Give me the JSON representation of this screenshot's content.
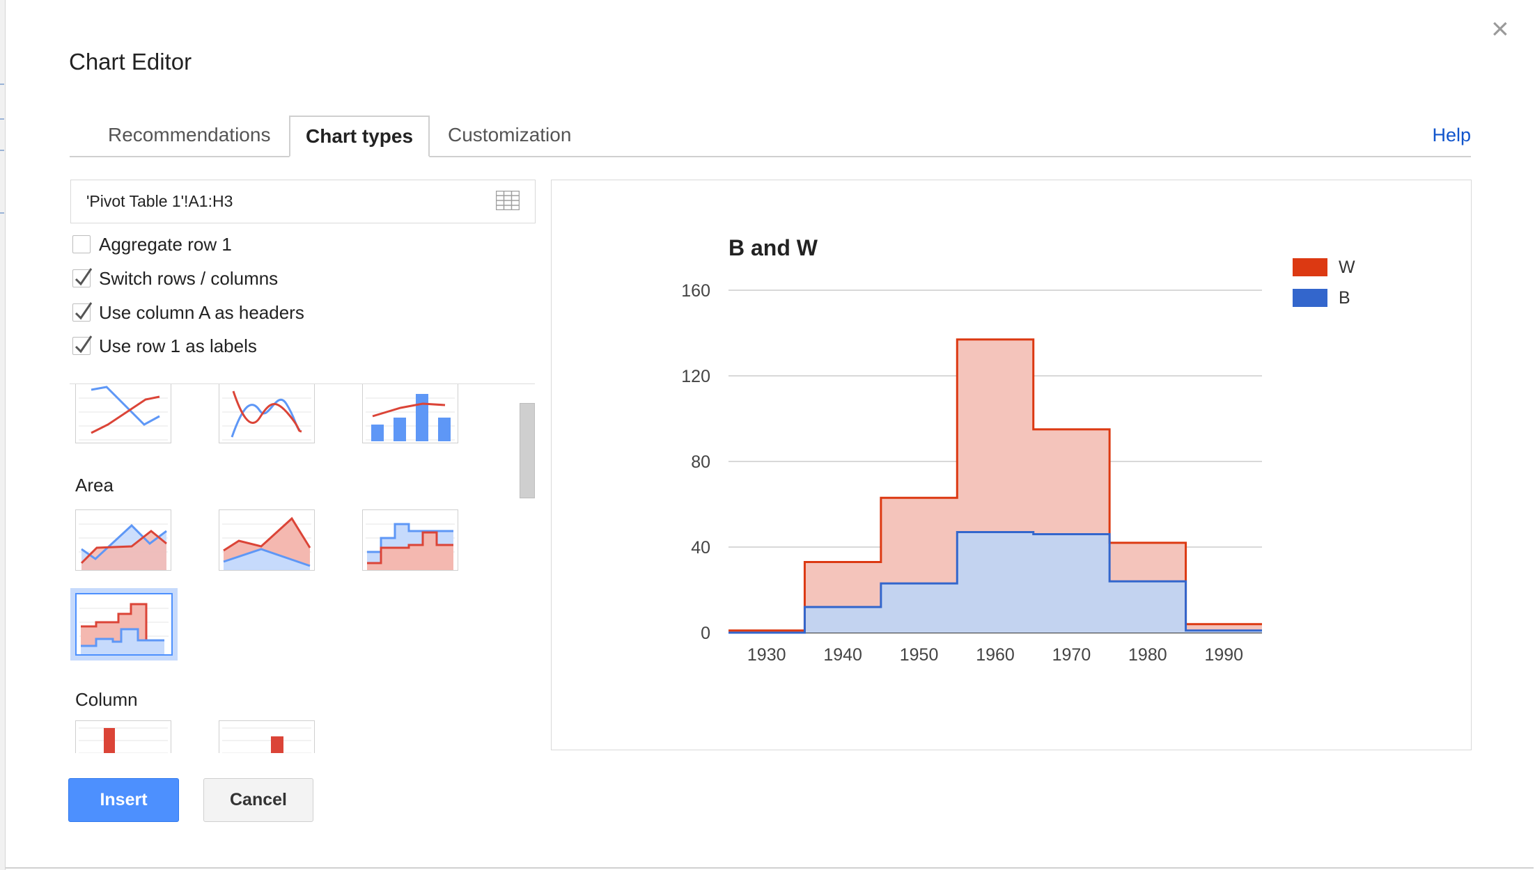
{
  "dialog": {
    "title": "Chart Editor",
    "close_glyph": "×"
  },
  "tabs": [
    {
      "label": "Recommendations",
      "active": false
    },
    {
      "label": "Chart types",
      "active": true
    },
    {
      "label": "Customization",
      "active": false
    }
  ],
  "help_label": "Help",
  "data_range": {
    "value": "'Pivot Table 1'!A1:H3",
    "icon": "grid-icon"
  },
  "options": [
    {
      "label": "Aggregate row 1",
      "checked": false
    },
    {
      "label": "Switch rows / columns",
      "checked": true
    },
    {
      "label": "Use column A as headers",
      "checked": true
    },
    {
      "label": "Use row 1 as labels",
      "checked": true
    }
  ],
  "chart_types": {
    "sections": [
      "Area",
      "Column"
    ],
    "selected": "stepped-area"
  },
  "buttons": {
    "insert": "Insert",
    "cancel": "Cancel"
  },
  "colors": {
    "W": "#dc3912",
    "B": "#3366cc",
    "accent": "#4d90fe",
    "link": "#1155cc"
  },
  "chart_data": {
    "type": "area",
    "style": "stepped",
    "title": "B and W",
    "categories": [
      "1930",
      "1940",
      "1950",
      "1960",
      "1970",
      "1980",
      "1990"
    ],
    "x": [
      1930,
      1940,
      1950,
      1960,
      1970,
      1980,
      1990
    ],
    "series": [
      {
        "name": "W",
        "values": [
          1,
          33,
          63,
          137,
          95,
          42,
          4
        ]
      },
      {
        "name": "B",
        "values": [
          0,
          12,
          23,
          47,
          46,
          24,
          1
        ]
      }
    ],
    "yticks": [
      "0",
      "40",
      "80",
      "120",
      "160"
    ],
    "ylim": [
      0,
      160
    ],
    "grid": true,
    "legend": "right"
  }
}
